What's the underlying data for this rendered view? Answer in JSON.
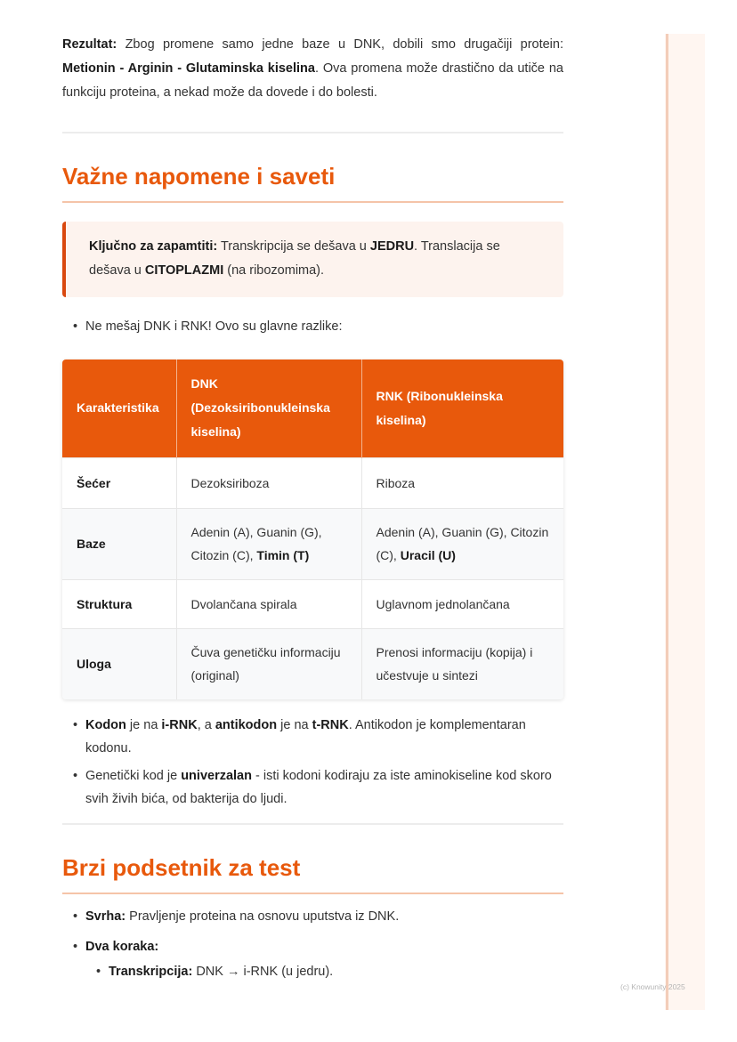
{
  "result": {
    "label": "Rezultat:",
    "text1": " Zbog promene samo jedne baze u DNK, dobili smo drugačiji protein: ",
    "protein": "Metionin - Arginin - Glutaminska kiselina",
    "text2": ". Ova promena može drastično da utiče na funkciju proteina, a nekad može da dovede i do bolesti."
  },
  "section1": {
    "title": "Važne napomene i saveti",
    "callout": {
      "label": "Ključno za zapamtiti:",
      "t1": " Transkripcija se dešava u ",
      "b1": "JEDRU",
      "t2": ". Translacija se dešava u ",
      "b2": "CITOPLAZMI",
      "t3": " (na ribozomima)."
    },
    "bullet_intro": "Ne mešaj DNK i RNK! Ovo su glavne razlike:",
    "table": {
      "headers": [
        "Karakteristika",
        "DNK (Dezoksiribonukleinska kiselina)",
        "RNK (Ribonukleinska kiselina)"
      ],
      "rows": [
        {
          "k": "Šećer",
          "dnk": "Dezoksiriboza",
          "rnk": "Riboza"
        },
        {
          "k": "Baze",
          "dnk": "Adenin (A), Guanin (G), Citozin (C), ",
          "dnk_b": "Timin (T)",
          "rnk": "Adenin (A), Guanin (G), Citozin (C), ",
          "rnk_b": "Uracil (U)"
        },
        {
          "k": "Struktura",
          "dnk": "Dvolančana spirala",
          "rnk": "Uglavnom jednolančana"
        },
        {
          "k": "Uloga",
          "dnk": "Čuva genetičku informaciju (original)",
          "rnk": "Prenosi informaciju (kopija) i učestvuje u sintezi"
        }
      ]
    },
    "bullets": [
      {
        "b1": "Kodon",
        "t1": " je na ",
        "b2": "i-RNK",
        "t2": ", a ",
        "b3": "antikodon",
        "t3": " je na ",
        "b4": "t-RNK",
        "t4": ". Antikodon je komplementaran kodonu."
      },
      {
        "t1": "Genetički kod je ",
        "b1": "univerzalan",
        "t2": " - isti kodoni kodiraju za iste aminokiseline kod skoro svih živih bića, od bakterija do ljudi."
      }
    ]
  },
  "section2": {
    "title": "Brzi podsetnik za test",
    "bullets": [
      {
        "b": "Svrha:",
        "t": " Pravljenje proteina na osnovu uputstva iz DNK."
      },
      {
        "b": "Dva koraka:",
        "t": ""
      }
    ],
    "nested": [
      {
        "b": "Transkripcija:",
        "t": " DNK → i-RNK (u jedru)."
      }
    ]
  },
  "footer": {
    "copyright": "(c) Knowunity 2025"
  },
  "colors": {
    "accent": "#e8590c",
    "callout_bg": "#fdf3ee",
    "callout_border": "#d9480f"
  }
}
